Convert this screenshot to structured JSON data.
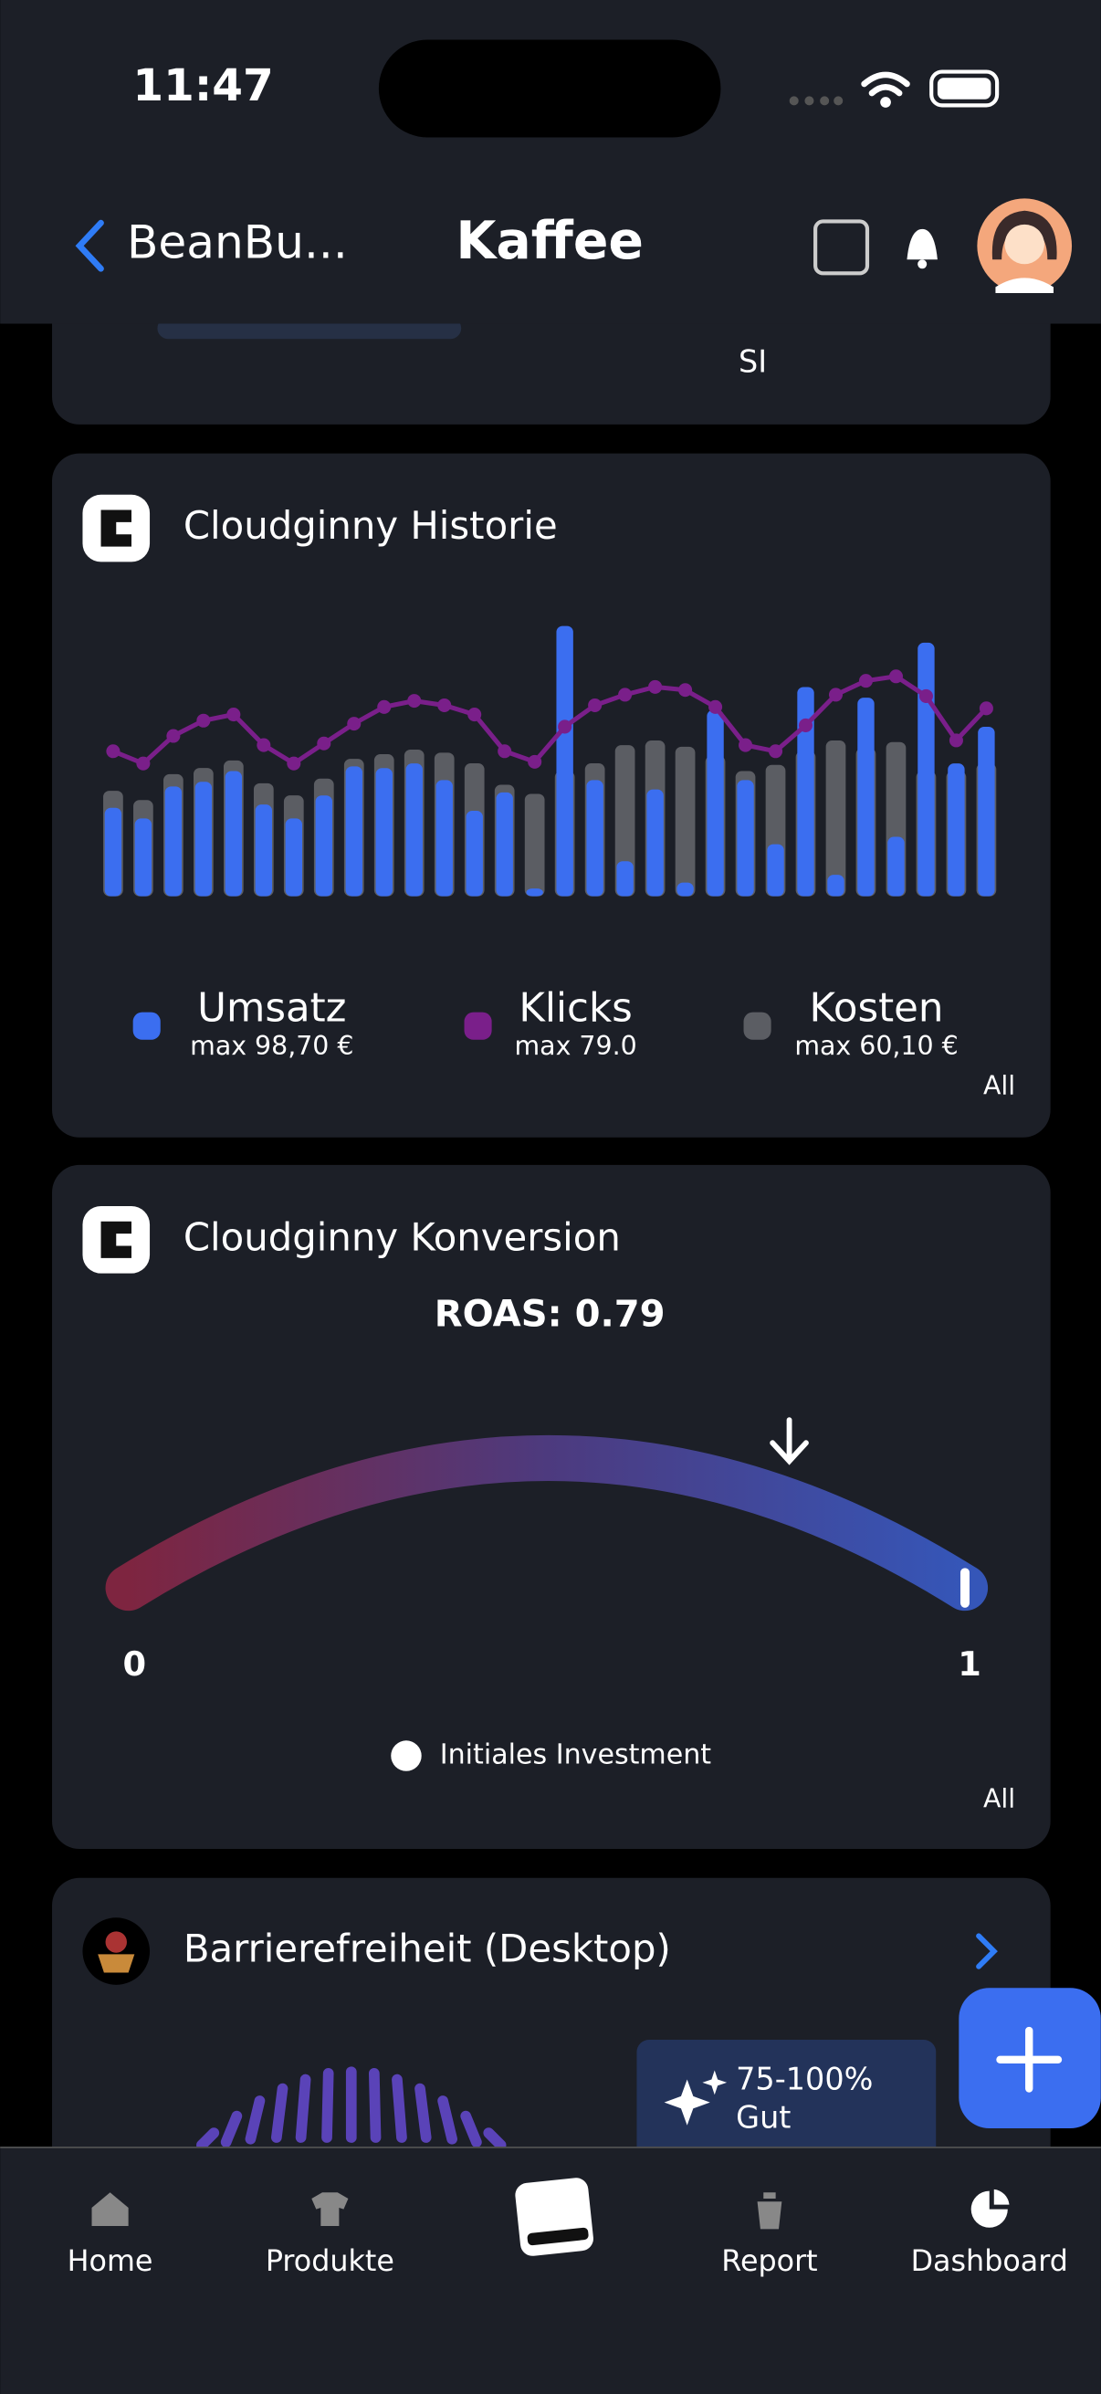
{
  "status": {
    "time": "11:47"
  },
  "nav": {
    "back": "BeanBu...",
    "title": "Kaffee"
  },
  "top_card": {
    "label": "SI"
  },
  "history": {
    "title": "Cloudginny Historie",
    "filter": "All",
    "chart": {
      "type": "bar",
      "categories": [
        null,
        null,
        null,
        null,
        null,
        null,
        null,
        null,
        null,
        null,
        null,
        null,
        null,
        null,
        null,
        null,
        null,
        null,
        null,
        null,
        null,
        null,
        null,
        null,
        null,
        null,
        null,
        null,
        null,
        null
      ],
      "series": [
        {
          "name": "Umsatz",
          "color": "#3b6ef0",
          "max": {
            "value": 98.7,
            "label": "max 98,70 €"
          },
          "values": [
            32.3,
            28.4,
            40.1,
            41.8,
            45.7,
            33.5,
            28.4,
            36.8,
            47.4,
            46.8,
            48.5,
            42.4,
            31.2,
            37.9,
            2.8,
            98.7,
            42.4,
            12.8,
            39.0,
            5.0,
            68.0,
            42.4,
            19.0,
            76.4,
            7.8,
            72.5,
            21.7,
            92.6,
            48.5,
            61.9
          ]
        },
        {
          "name": "Klicks",
          "color": "#7a1f8a",
          "type": "line",
          "max": {
            "value": 79,
            "label": "max 79.0"
          },
          "values": [
            52.1,
            47.7,
            57.6,
            63.1,
            65.3,
            54.3,
            47.7,
            54.9,
            62.0,
            68.0,
            70.2,
            68.6,
            65.3,
            52.1,
            48.3,
            60.9,
            68.6,
            72.4,
            75.2,
            74.1,
            68.0,
            54.3,
            52.1,
            61.4,
            72.4,
            77.4,
            79.0,
            71.9,
            56.0,
            67.5
          ]
        },
        {
          "name": "Kosten",
          "color": "#5b5d63",
          "max": {
            "value": 60.1,
            "label": "max 60,10 €"
          },
          "values": [
            40.7,
            37.1,
            47.1,
            49.5,
            52.4,
            43.6,
            38.9,
            45.4,
            53.0,
            54.8,
            56.6,
            55.4,
            51.3,
            43.0,
            39.5,
            48.3,
            51.3,
            58.3,
            60.1,
            57.7,
            54.2,
            48.3,
            50.7,
            56.0,
            60.1,
            57.2,
            59.5,
            48.3,
            48.3,
            51.3
          ]
        }
      ]
    }
  },
  "conversion": {
    "title": "Cloudginny Konversion",
    "filter": "All",
    "gauge": {
      "type": "gauge",
      "value": {
        "value": 0.79,
        "label": "ROAS: 0.79"
      },
      "lim": [
        0,
        1
      ],
      "ticks": [
        0,
        1
      ],
      "legend": "Initiales Investment"
    }
  },
  "accessibility": {
    "title": "Barrierefreiheit (Desktop)",
    "badge": {
      "range": "75-100%",
      "rating": "Gut"
    }
  },
  "tabs": [
    "Home",
    "Produkte",
    "Report",
    "Dashboard"
  ]
}
